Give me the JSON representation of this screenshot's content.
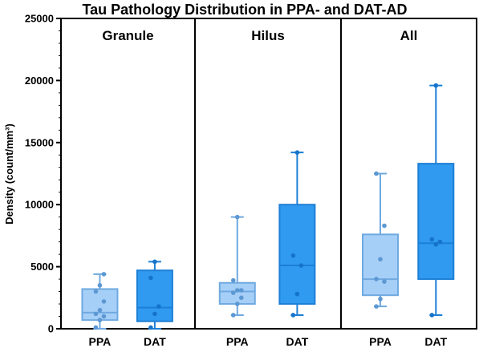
{
  "chart_data": {
    "type": "box",
    "title": "Tau Pathology Distribution in PPA- and DAT-AD",
    "ylabel": "Density (count/mm³)",
    "ylim": [
      0,
      25000
    ],
    "yticks": [
      0,
      5000,
      10000,
      15000,
      20000,
      25000
    ],
    "categories": [
      "PPA",
      "DAT"
    ],
    "colors": {
      "PPA": "#a6cff7",
      "DAT": "#2f9af0",
      "PPA_stroke": "#6fa9e0",
      "DAT_stroke": "#1d7fd6",
      "PPA_point": "#5c98d3",
      "DAT_point": "#1573c9"
    },
    "panels": [
      {
        "title": "Granule",
        "boxes": [
          {
            "category": "PPA",
            "min": 0,
            "q1": 700,
            "median": 1300,
            "q3": 3200,
            "max": 4400,
            "points": [
              100,
              700,
              1000,
              1200,
              1500,
              2200,
              3000,
              3500,
              4400
            ]
          },
          {
            "category": "DAT",
            "min": 0,
            "q1": 600,
            "median": 1700,
            "q3": 4700,
            "max": 5400,
            "points": [
              100,
              1200,
              1800,
              4100,
              5400
            ]
          }
        ]
      },
      {
        "title": "Hilus",
        "boxes": [
          {
            "category": "PPA",
            "min": 1100,
            "q1": 2000,
            "median": 3000,
            "q3": 3700,
            "max": 9000,
            "points": [
              1100,
              2000,
              2500,
              2900,
              3100,
              3100,
              3900,
              9000
            ]
          },
          {
            "category": "DAT",
            "min": 1100,
            "q1": 2000,
            "median": 5100,
            "q3": 10000,
            "max": 14200,
            "points": [
              1100,
              2800,
              5100,
              5900,
              14200
            ]
          }
        ]
      },
      {
        "title": "All",
        "boxes": [
          {
            "category": "PPA",
            "min": 1800,
            "q1": 2700,
            "median": 4000,
            "q3": 7600,
            "max": 12500,
            "points": [
              1800,
              2400,
              3800,
              4000,
              5600,
              8300,
              12500
            ]
          },
          {
            "category": "DAT",
            "min": 1100,
            "q1": 4000,
            "median": 6900,
            "q3": 13300,
            "max": 19600,
            "points": [
              1100,
              6800,
              7000,
              7200,
              19600
            ]
          }
        ]
      }
    ]
  }
}
